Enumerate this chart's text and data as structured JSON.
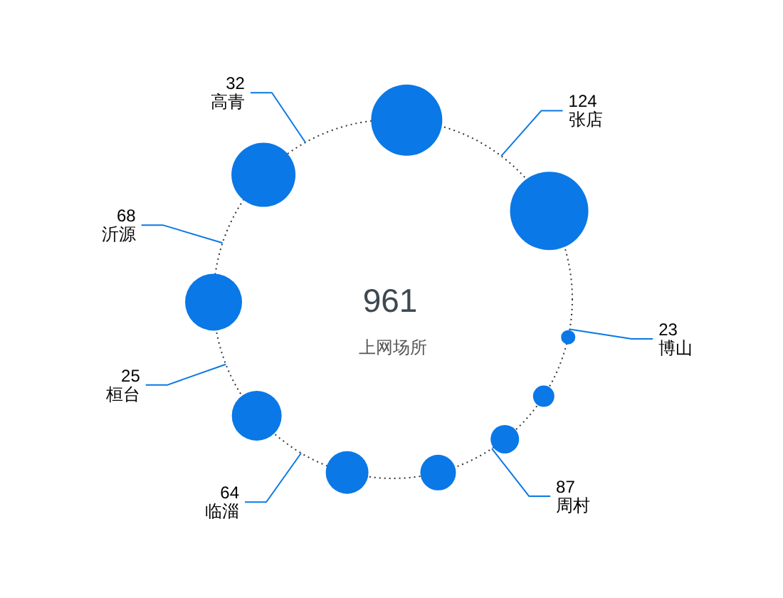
{
  "chart_data": {
    "type": "other",
    "title": "961",
    "subtitle": "上网场所",
    "categories": [
      "张店",
      "博山",
      "周村",
      "临淄",
      "桓台",
      "沂源",
      "高青"
    ],
    "values": [
      124,
      23,
      87,
      64,
      25,
      68,
      32
    ],
    "color": "#0a78e6",
    "data_labels": true
  }
}
